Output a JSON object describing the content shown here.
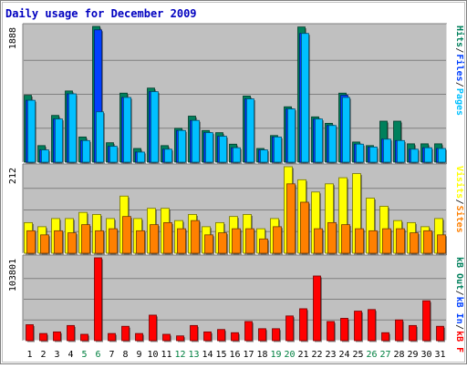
{
  "title": "Daily usage for December 2009",
  "colors": {
    "background": "#ffffff",
    "plot_background": "#c0c0c0",
    "frame_dark": "#808080",
    "grid": "#808080",
    "title_text": "#0000c0",
    "axis_text": "#000000",
    "weekend_text": "#008040",
    "hits": "#00805c",
    "files": "#0040ff",
    "pages": "#00c0ff",
    "visits": "#ffff00",
    "sites": "#ff8000",
    "kb_f": "#ff0000",
    "kb_in": "#0040ff",
    "kb_out": "#00805c"
  },
  "chart_data": [
    {
      "type": "bar",
      "name": "hits-files-pages",
      "ymax_label": "1888",
      "ylim": [
        0,
        1888
      ],
      "legend": [
        {
          "label": "Pages",
          "color": "#00c0ff"
        },
        {
          "label": "Files",
          "color": "#0040ff"
        },
        {
          "label": "Hits",
          "color": "#00805c"
        }
      ],
      "series": [
        {
          "name": "Hits",
          "values": [
            930,
            230,
            650,
            990,
            350,
            1888,
            270,
            960,
            190,
            1030,
            230,
            470,
            640,
            440,
            410,
            250,
            920,
            190,
            370,
            770,
            1880,
            630,
            540,
            960,
            280,
            230,
            570,
            570,
            255,
            255,
            255
          ]
        },
        {
          "name": "Files",
          "values": [
            860,
            170,
            600,
            950,
            300,
            1840,
            220,
            900,
            140,
            980,
            180,
            440,
            580,
            410,
            360,
            200,
            880,
            170,
            350,
            740,
            1790,
            600,
            510,
            930,
            250,
            210,
            320,
            300,
            180,
            200,
            190
          ]
        },
        {
          "name": "Pages",
          "values": [
            860,
            170,
            600,
            950,
            300,
            700,
            220,
            900,
            140,
            980,
            180,
            440,
            580,
            410,
            360,
            200,
            880,
            170,
            350,
            740,
            1790,
            600,
            510,
            900,
            250,
            210,
            320,
            300,
            180,
            200,
            190
          ]
        }
      ]
    },
    {
      "type": "bar",
      "name": "visits-sites",
      "ymax_label": "212",
      "ylim": [
        0,
        212
      ],
      "legend": [
        {
          "label": "Sites",
          "color": "#ff8000"
        },
        {
          "label": "Visits",
          "color": "#ffff00"
        }
      ],
      "series": [
        {
          "name": "Visits",
          "values": [
            75,
            65,
            85,
            85,
            100,
            95,
            85,
            140,
            85,
            110,
            110,
            80,
            95,
            65,
            75,
            90,
            95,
            60,
            85,
            212,
            180,
            150,
            170,
            185,
            195,
            135,
            115,
            80,
            75,
            65,
            85
          ]
        },
        {
          "name": "Sites",
          "values": [
            55,
            45,
            55,
            50,
            70,
            55,
            60,
            90,
            55,
            70,
            75,
            60,
            80,
            45,
            50,
            60,
            60,
            35,
            65,
            170,
            125,
            60,
            75,
            70,
            60,
            55,
            60,
            60,
            50,
            55,
            45
          ]
        }
      ]
    },
    {
      "type": "bar",
      "name": "kbytes",
      "ymax_label": "103801",
      "ylim": [
        0,
        103801
      ],
      "legend": [
        {
          "label": "kB F",
          "color": "#ff0000"
        },
        {
          "label": "kB In",
          "color": "#0040ff"
        },
        {
          "label": "kB Out",
          "color": "#00805c"
        }
      ],
      "series": [
        {
          "name": "kB F",
          "values": [
            20000,
            9000,
            11000,
            19000,
            8000,
            103801,
            9000,
            18000,
            9000,
            32000,
            8000,
            6000,
            19000,
            11000,
            14000,
            10000,
            24000,
            15000,
            15000,
            31000,
            40000,
            81000,
            24000,
            28000,
            37000,
            39000,
            10000,
            26000,
            19000,
            50000,
            18000
          ]
        }
      ]
    }
  ],
  "x_labels": [
    "1",
    "2",
    "3",
    "4",
    "5",
    "6",
    "7",
    "8",
    "9",
    "10",
    "11",
    "12",
    "13",
    "14",
    "15",
    "16",
    "17",
    "18",
    "19",
    "20",
    "21",
    "22",
    "23",
    "24",
    "25",
    "26",
    "27",
    "28",
    "29",
    "30",
    "31"
  ],
  "weekend_days": [
    5,
    6,
    12,
    13,
    19,
    20,
    26,
    27
  ]
}
